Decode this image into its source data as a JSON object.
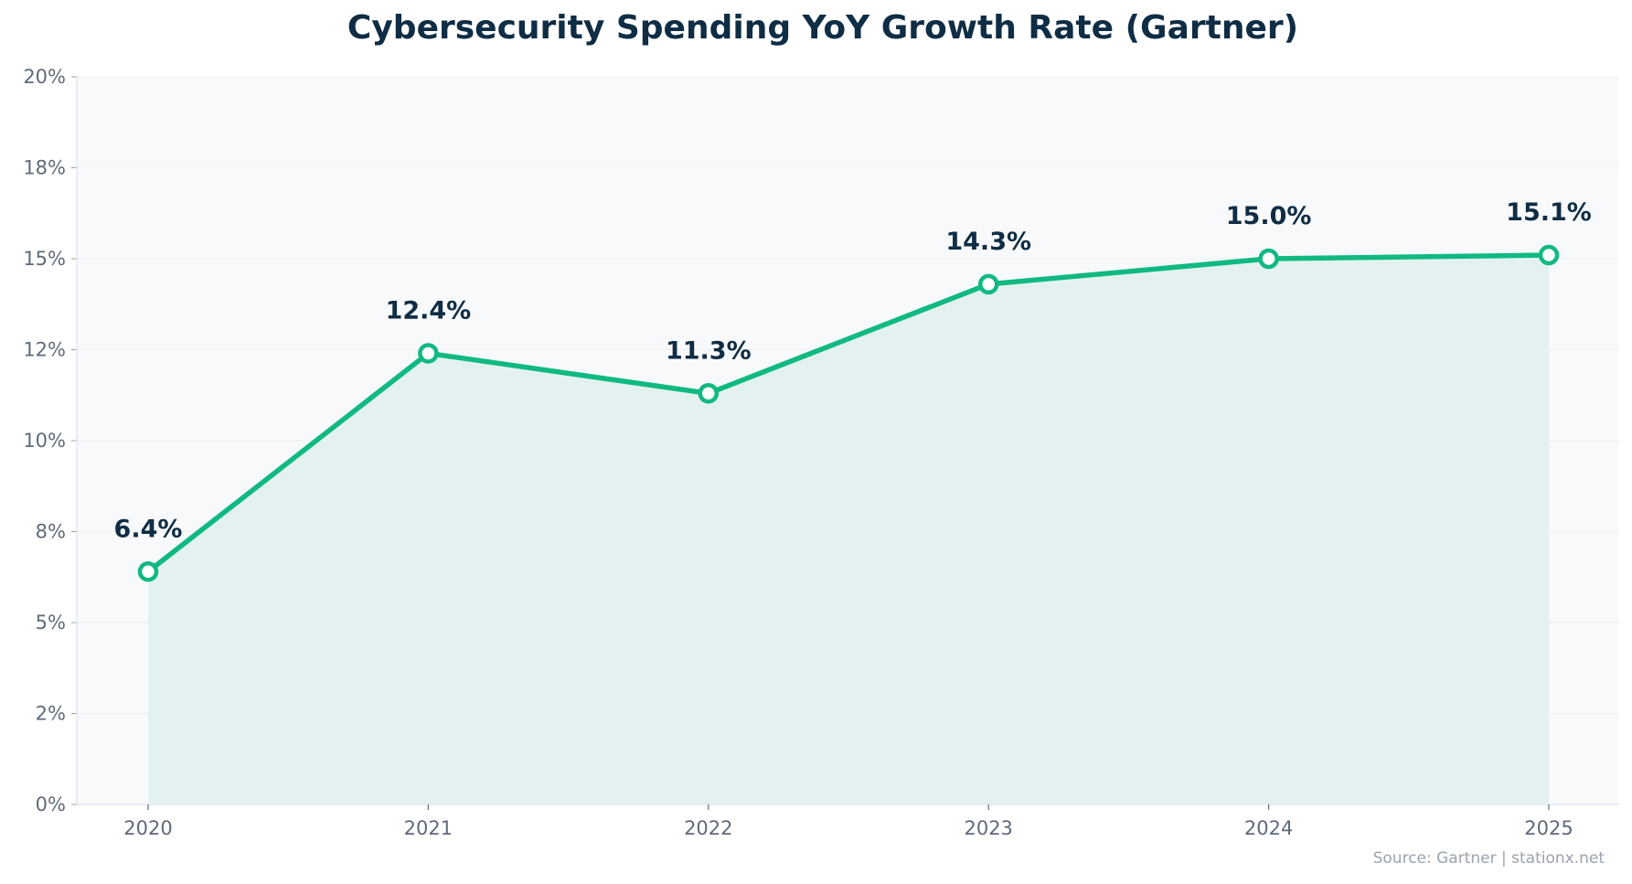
{
  "chart_data": {
    "type": "area",
    "title": "Cybersecurity Spending YoY Growth Rate (Gartner)",
    "xlabel": "",
    "ylabel": "",
    "categories": [
      "2020",
      "2021",
      "2022",
      "2023",
      "2024",
      "2025"
    ],
    "values": [
      6.4,
      12.4,
      11.3,
      14.3,
      15.0,
      15.1
    ],
    "data_labels": [
      "6.4%",
      "12.4%",
      "11.3%",
      "14.3%",
      "15.0%",
      "15.1%"
    ],
    "ylim": [
      0,
      20
    ],
    "yticks": [
      0,
      2.5,
      5,
      7.5,
      10,
      12.5,
      15,
      17.5,
      20
    ],
    "ytick_labels": [
      "0%",
      "2%",
      "5%",
      "8%",
      "10%",
      "12%",
      "15%",
      "18%",
      "20%"
    ],
    "grid": true,
    "legend": "none",
    "source": "Source: Gartner | stationx.net",
    "colors": {
      "line": "#10b981",
      "fill": "#e3f2f1",
      "plot_bg": "#f8f9fb",
      "title": "#0f2d44",
      "tick": "#5f6b7a",
      "source": "#9aa3ae"
    }
  }
}
